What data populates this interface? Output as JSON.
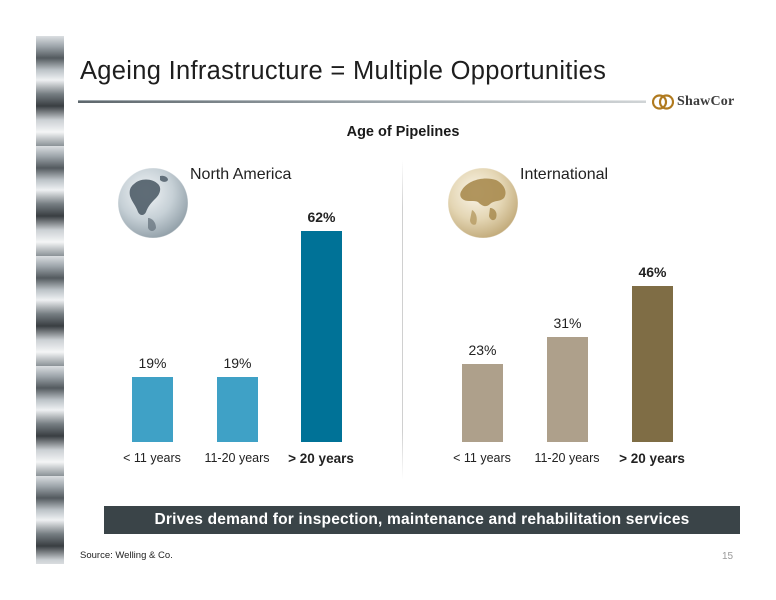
{
  "slide": {
    "title": "Ageing Infrastructure = Multiple Opportunities",
    "logo_text": "ShawCor",
    "banner": "Drives demand for inspection, maintenance and rehabilitation services",
    "source": "Source: Welling & Co.",
    "page_number": "15"
  },
  "chart_data": {
    "type": "bar",
    "title": "Age of Pipelines",
    "charts": [
      {
        "title": "North America",
        "categories": [
          "< 11 years",
          "11-20 years",
          "> 20 years"
        ],
        "values": [
          19,
          19,
          62
        ],
        "labels": [
          "19%",
          "19%",
          "62%"
        ],
        "colors": [
          "#3fa1c6",
          "#3fa1c6",
          "#007297"
        ],
        "highlight_index": 2
      },
      {
        "title": "International",
        "categories": [
          "< 11 years",
          "11-20 years",
          "> 20 years"
        ],
        "values": [
          23,
          31,
          46
        ],
        "labels": [
          "23%",
          "31%",
          "46%"
        ],
        "colors": [
          "#aea08b",
          "#aea08b",
          "#7f6d45"
        ],
        "highlight_index": 2
      }
    ]
  }
}
